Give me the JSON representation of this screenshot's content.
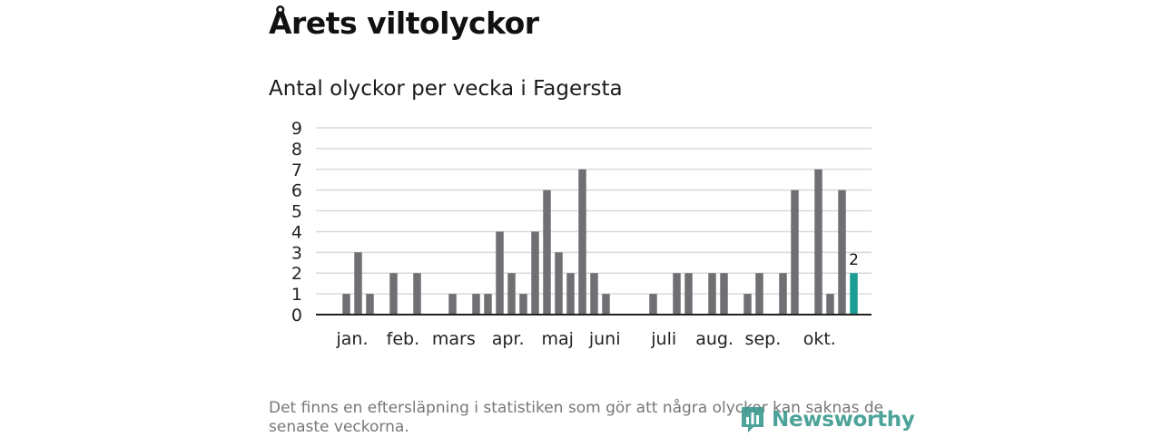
{
  "title": "Årets viltolyckor",
  "subtitle": "Antal olyckor per vecka i Fagersta",
  "note": "Det finns en eftersläpning i statistiken som gör att några olyckor kan saknas de senaste veckorna.",
  "logo": {
    "text": "Newsworthy",
    "icon": "newsworthy-logo-icon"
  },
  "colors": {
    "bar": "#707074",
    "highlight": "#1a9d94",
    "grid": "#d9d9d9",
    "axis": "#222222"
  },
  "chart_data": {
    "type": "bar",
    "title": "Antal olyckor per vecka i Fagersta",
    "xlabel": "",
    "ylabel": "",
    "ylim": [
      0,
      9
    ],
    "yticks": [
      0,
      1,
      2,
      3,
      4,
      5,
      6,
      7,
      8,
      9
    ],
    "grid": true,
    "weeks": [
      1,
      2,
      3,
      4,
      5,
      6,
      7,
      8,
      9,
      10,
      11,
      12,
      13,
      14,
      15,
      16,
      17,
      18,
      19,
      20,
      21,
      22,
      23,
      24,
      25,
      26,
      27,
      28,
      29,
      30,
      31,
      32,
      33,
      34,
      35,
      36,
      37,
      38,
      39,
      40,
      41,
      42,
      43,
      44,
      45,
      46
    ],
    "values": [
      0,
      0,
      1,
      3,
      1,
      0,
      2,
      0,
      2,
      0,
      0,
      1,
      0,
      1,
      1,
      4,
      2,
      1,
      4,
      6,
      3,
      2,
      7,
      2,
      1,
      0,
      0,
      0,
      1,
      0,
      2,
      2,
      0,
      2,
      2,
      0,
      1,
      2,
      0,
      2,
      6,
      0,
      7,
      1,
      6,
      2
    ],
    "highlight_index": 45,
    "highlight_label": "2",
    "month_labels": [
      {
        "label": "jan.",
        "week": 3.5
      },
      {
        "label": "feb.",
        "week": 7.8
      },
      {
        "label": "mars",
        "week": 12.1
      },
      {
        "label": "apr.",
        "week": 16.7
      },
      {
        "label": "maj",
        "week": 20.9
      },
      {
        "label": "juni",
        "week": 24.9
      },
      {
        "label": "juli",
        "week": 29.9
      },
      {
        "label": "aug.",
        "week": 34.2
      },
      {
        "label": "sep.",
        "week": 38.3
      },
      {
        "label": "okt.",
        "week": 43.1
      }
    ]
  }
}
